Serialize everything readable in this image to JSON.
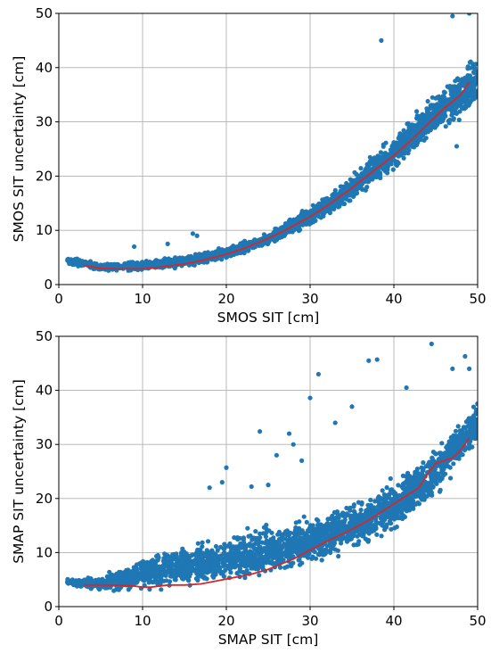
{
  "colors": {
    "points": "#1f77b4",
    "median_line": "#d62728",
    "grid": "#b0b0b0"
  },
  "chart_data": [
    {
      "type": "scatter",
      "id": "smos",
      "title": "",
      "xlabel": "SMOS SIT [cm]",
      "ylabel": "SMOS SIT uncertainty [cm]",
      "xlim": [
        0,
        50
      ],
      "ylim": [
        0,
        50
      ],
      "xticks": [
        0,
        10,
        20,
        30,
        40,
        50
      ],
      "yticks": [
        0,
        10,
        20,
        30,
        40,
        50
      ],
      "grid": true,
      "legend": "none",
      "series": [
        {
          "kind": "points",
          "envelope_x": [
            1,
            5,
            10,
            15,
            20,
            25,
            30,
            35,
            40,
            45,
            50
          ],
          "envelope_low": [
            3.5,
            2.2,
            2.1,
            2.8,
            4.4,
            6.8,
            10.0,
            14.5,
            20.0,
            26.5,
            30.0
          ],
          "envelope_high": [
            5.5,
            4.2,
            4.8,
            5.6,
            7.2,
            10.0,
            15.0,
            21.0,
            28.5,
            37.0,
            45.0
          ],
          "outliers": [
            [
              9,
              7
            ],
            [
              13,
              7.5
            ],
            [
              16,
              9.4
            ],
            [
              16.5,
              9
            ],
            [
              38.5,
              45
            ],
            [
              47,
              49.5
            ],
            [
              47.5,
              25.5
            ],
            [
              49,
              50
            ]
          ]
        },
        {
          "kind": "line",
          "x": [
            3,
            5,
            7,
            10,
            12,
            15,
            17,
            20,
            22,
            25,
            27,
            30,
            32,
            35,
            37,
            40,
            42,
            44,
            46,
            48,
            49
          ],
          "y": [
            3.5,
            3.0,
            2.9,
            2.9,
            3.2,
            3.8,
            4.4,
            5.6,
            6.6,
            8.5,
            10.0,
            12.5,
            14.5,
            17.8,
            20.3,
            23.8,
            26.5,
            29.5,
            32.5,
            35.0,
            37.3
          ]
        }
      ]
    },
    {
      "type": "scatter",
      "id": "smap",
      "title": "",
      "xlabel": "SMAP SIT [cm]",
      "ylabel": "SMAP SIT uncertainty [cm]",
      "xlim": [
        0,
        50
      ],
      "ylim": [
        0,
        50
      ],
      "xticks": [
        0,
        10,
        20,
        30,
        40,
        50
      ],
      "yticks": [
        0,
        10,
        20,
        30,
        40,
        50
      ],
      "grid": true,
      "legend": "none",
      "series": [
        {
          "kind": "points",
          "envelope_x": [
            1,
            5,
            10,
            15,
            20,
            25,
            30,
            35,
            40,
            45,
            50
          ],
          "envelope_low": [
            3.8,
            2.2,
            2.0,
            2.2,
            3.0,
            4.2,
            6.0,
            8.5,
            12.0,
            18.0,
            28.0
          ],
          "envelope_high": [
            5.5,
            6.0,
            10.0,
            13.0,
            14.5,
            16.5,
            18.5,
            21.0,
            25.0,
            32.0,
            40.0
          ],
          "outliers": [
            [
              18,
              22
            ],
            [
              19.5,
              23
            ],
            [
              20,
              25.7
            ],
            [
              23,
              22.2
            ],
            [
              24,
              32.4
            ],
            [
              25,
              22.5
            ],
            [
              26,
              28
            ],
            [
              27.5,
              32
            ],
            [
              28,
              30
            ],
            [
              29,
              27
            ],
            [
              30,
              38.6
            ],
            [
              31,
              43
            ],
            [
              33,
              34
            ],
            [
              35,
              37
            ],
            [
              37,
              45.5
            ],
            [
              38,
              45.7
            ],
            [
              41.5,
              40.5
            ],
            [
              44.5,
              48.6
            ],
            [
              47,
              44
            ],
            [
              48.5,
              46.3
            ],
            [
              49,
              44
            ]
          ]
        },
        {
          "kind": "line",
          "x": [
            3,
            5,
            7,
            9,
            10,
            11,
            13,
            15,
            17,
            20,
            23,
            25,
            28,
            30,
            32,
            35,
            37,
            40,
            42,
            43,
            44,
            45,
            46,
            47,
            48,
            49
          ],
          "y": [
            4.0,
            4.0,
            4.0,
            3.8,
            3.6,
            3.6,
            4.0,
            4.0,
            4.2,
            5.1,
            6.0,
            6.9,
            8.8,
            10.5,
            12.1,
            14.3,
            16.0,
            19.0,
            21.0,
            22.0,
            24.5,
            26.5,
            27.0,
            27.5,
            29.0,
            31.2
          ]
        }
      ]
    }
  ]
}
